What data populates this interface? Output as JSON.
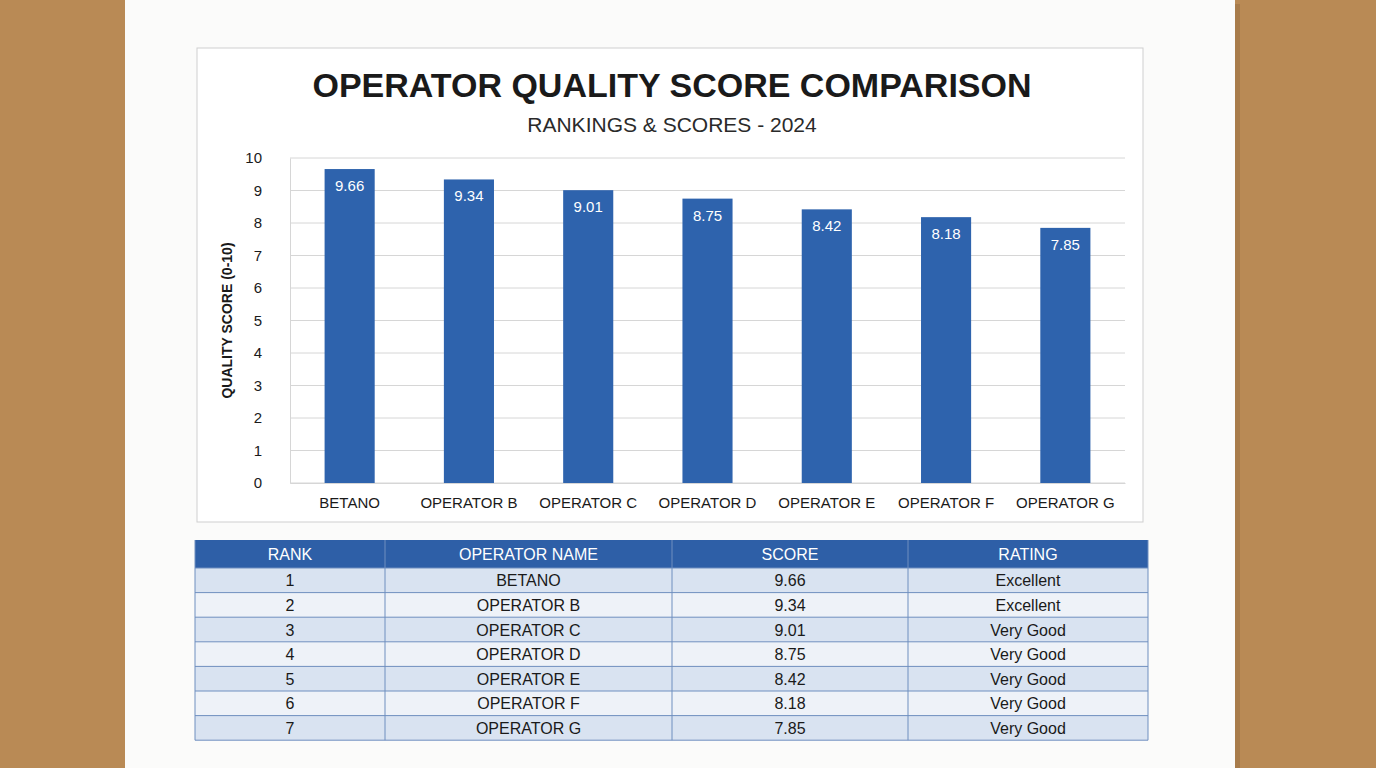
{
  "chart_data": {
    "type": "bar",
    "title": "OPERATOR QUALITY SCORE COMPARISON",
    "subtitle": "RANKINGS & SCORES - 2024",
    "y_label": "QUALITY SCORE (0-10)",
    "categories": [
      "BETANO",
      "OPERATOR B",
      "OPERATOR C",
      "OPERATOR D",
      "OPERATOR E",
      "OPERATOR F",
      "OPERATOR G"
    ],
    "values": [
      9.66,
      9.34,
      9.01,
      8.75,
      8.42,
      8.18,
      7.85
    ],
    "color": "#2e63ad",
    "ylim": [
      0,
      10
    ],
    "yticks": [
      0,
      1,
      2,
      3,
      4,
      5,
      6,
      7,
      8,
      9,
      10
    ],
    "grid": true,
    "data_labels": true
  },
  "table": {
    "columns": [
      "RANK",
      "OPERATOR NAME",
      "SCORE",
      "RATING"
    ],
    "rows": [
      [
        1,
        "BETANO",
        9.66,
        "Excellent"
      ],
      [
        2,
        "OPERATOR B",
        9.34,
        "Excellent"
      ],
      [
        3,
        "OPERATOR C",
        9.01,
        "Very Good"
      ],
      [
        4,
        "OPERATOR D",
        8.75,
        "Very Good"
      ],
      [
        5,
        "OPERATOR E",
        8.42,
        "Very Good"
      ],
      [
        6,
        "OPERATOR F",
        8.18,
        "Very Good"
      ],
      [
        7,
        "OPERATOR G",
        7.85,
        "Very Good"
      ]
    ]
  }
}
